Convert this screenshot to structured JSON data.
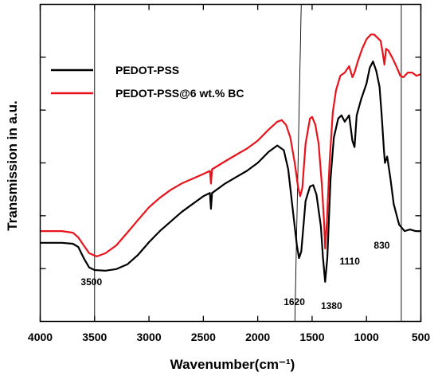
{
  "chart_data": {
    "type": "line",
    "xlabel": "Wavenumber(cm⁻¹)",
    "ylabel": "Transmission in a.u.",
    "xlim": [
      4000,
      500
    ],
    "ylim": [
      0,
      10
    ],
    "x_ticks": [
      4000,
      3500,
      3000,
      2500,
      2000,
      1500,
      1000,
      500
    ],
    "y_tick_labels_shown": false,
    "legend_position": "top-left",
    "colors": {
      "PEDOT-PSS": "#000000",
      "PEDOT-PSS@6 wt.% BC": "#e8131b"
    },
    "annotations": [
      {
        "label": "3500",
        "x": 3500
      },
      {
        "label": "1620",
        "x": 1620
      },
      {
        "label": "1380",
        "x": 1380
      },
      {
        "label": "1110",
        "x": 1110
      },
      {
        "label": "830",
        "x": 830
      }
    ],
    "reference_lines_x": [
      3500,
      1600,
      680
    ],
    "series": [
      {
        "name": "PEDOT-PSS",
        "points": [
          [
            4000,
            2.48
          ],
          [
            3800,
            2.48
          ],
          [
            3700,
            2.45
          ],
          [
            3650,
            2.35
          ],
          [
            3600,
            2.0
          ],
          [
            3550,
            1.7
          ],
          [
            3500,
            1.62
          ],
          [
            3400,
            1.6
          ],
          [
            3300,
            1.65
          ],
          [
            3200,
            1.8
          ],
          [
            3100,
            2.1
          ],
          [
            3000,
            2.5
          ],
          [
            2900,
            2.85
          ],
          [
            2800,
            3.15
          ],
          [
            2700,
            3.45
          ],
          [
            2600,
            3.7
          ],
          [
            2500,
            3.95
          ],
          [
            2440,
            4.05
          ],
          [
            2430,
            3.55
          ],
          [
            2420,
            4.05
          ],
          [
            2300,
            4.35
          ],
          [
            2200,
            4.55
          ],
          [
            2100,
            4.75
          ],
          [
            2000,
            5.0
          ],
          [
            1900,
            5.35
          ],
          [
            1820,
            5.55
          ],
          [
            1760,
            5.4
          ],
          [
            1720,
            4.8
          ],
          [
            1680,
            3.6
          ],
          [
            1640,
            2.4
          ],
          [
            1620,
            2.0
          ],
          [
            1600,
            2.2
          ],
          [
            1560,
            3.8
          ],
          [
            1520,
            4.25
          ],
          [
            1490,
            4.3
          ],
          [
            1460,
            4.0
          ],
          [
            1420,
            3.0
          ],
          [
            1400,
            2.0
          ],
          [
            1380,
            1.25
          ],
          [
            1360,
            2.0
          ],
          [
            1330,
            4.5
          ],
          [
            1300,
            5.8
          ],
          [
            1260,
            6.4
          ],
          [
            1230,
            6.5
          ],
          [
            1200,
            6.3
          ],
          [
            1160,
            6.5
          ],
          [
            1130,
            5.7
          ],
          [
            1110,
            5.5
          ],
          [
            1090,
            6.5
          ],
          [
            1050,
            7.0
          ],
          [
            1000,
            7.5
          ],
          [
            970,
            8.0
          ],
          [
            940,
            8.2
          ],
          [
            910,
            7.9
          ],
          [
            880,
            7.4
          ],
          [
            860,
            6.5
          ],
          [
            840,
            5.4
          ],
          [
            830,
            5.0
          ],
          [
            810,
            5.2
          ],
          [
            780,
            4.5
          ],
          [
            750,
            3.7
          ],
          [
            700,
            3.05
          ],
          [
            650,
            2.85
          ],
          [
            600,
            2.9
          ],
          [
            550,
            2.85
          ],
          [
            500,
            2.85
          ]
        ]
      },
      {
        "name": "PEDOT-PSS@6 wt.% BC",
        "points": [
          [
            4000,
            2.85
          ],
          [
            3800,
            2.85
          ],
          [
            3700,
            2.8
          ],
          [
            3650,
            2.65
          ],
          [
            3600,
            2.4
          ],
          [
            3550,
            2.15
          ],
          [
            3480,
            2.05
          ],
          [
            3400,
            2.15
          ],
          [
            3300,
            2.4
          ],
          [
            3200,
            2.8
          ],
          [
            3100,
            3.2
          ],
          [
            3000,
            3.6
          ],
          [
            2900,
            3.9
          ],
          [
            2800,
            4.15
          ],
          [
            2700,
            4.35
          ],
          [
            2600,
            4.5
          ],
          [
            2500,
            4.65
          ],
          [
            2440,
            4.75
          ],
          [
            2430,
            4.35
          ],
          [
            2420,
            4.8
          ],
          [
            2300,
            5.05
          ],
          [
            2200,
            5.25
          ],
          [
            2100,
            5.45
          ],
          [
            2000,
            5.7
          ],
          [
            1900,
            6.05
          ],
          [
            1820,
            6.3
          ],
          [
            1780,
            6.35
          ],
          [
            1740,
            6.2
          ],
          [
            1700,
            5.8
          ],
          [
            1660,
            5.0
          ],
          [
            1630,
            4.25
          ],
          [
            1610,
            3.95
          ],
          [
            1590,
            4.2
          ],
          [
            1560,
            5.6
          ],
          [
            1520,
            6.4
          ],
          [
            1500,
            6.45
          ],
          [
            1470,
            6.2
          ],
          [
            1440,
            5.6
          ],
          [
            1410,
            4.3
          ],
          [
            1390,
            3.1
          ],
          [
            1380,
            2.3
          ],
          [
            1365,
            3.1
          ],
          [
            1340,
            5.0
          ],
          [
            1310,
            6.6
          ],
          [
            1280,
            7.3
          ],
          [
            1240,
            7.75
          ],
          [
            1200,
            7.85
          ],
          [
            1160,
            8.05
          ],
          [
            1130,
            7.7
          ],
          [
            1110,
            7.85
          ],
          [
            1080,
            8.2
          ],
          [
            1040,
            8.6
          ],
          [
            1000,
            8.9
          ],
          [
            960,
            9.05
          ],
          [
            930,
            9.05
          ],
          [
            900,
            8.95
          ],
          [
            870,
            8.85
          ],
          [
            850,
            8.45
          ],
          [
            835,
            8.1
          ],
          [
            820,
            8.6
          ],
          [
            800,
            8.55
          ],
          [
            760,
            8.3
          ],
          [
            720,
            8.0
          ],
          [
            690,
            7.75
          ],
          [
            660,
            7.7
          ],
          [
            620,
            7.85
          ],
          [
            580,
            7.85
          ],
          [
            540,
            7.75
          ],
          [
            500,
            7.8
          ]
        ]
      }
    ]
  }
}
